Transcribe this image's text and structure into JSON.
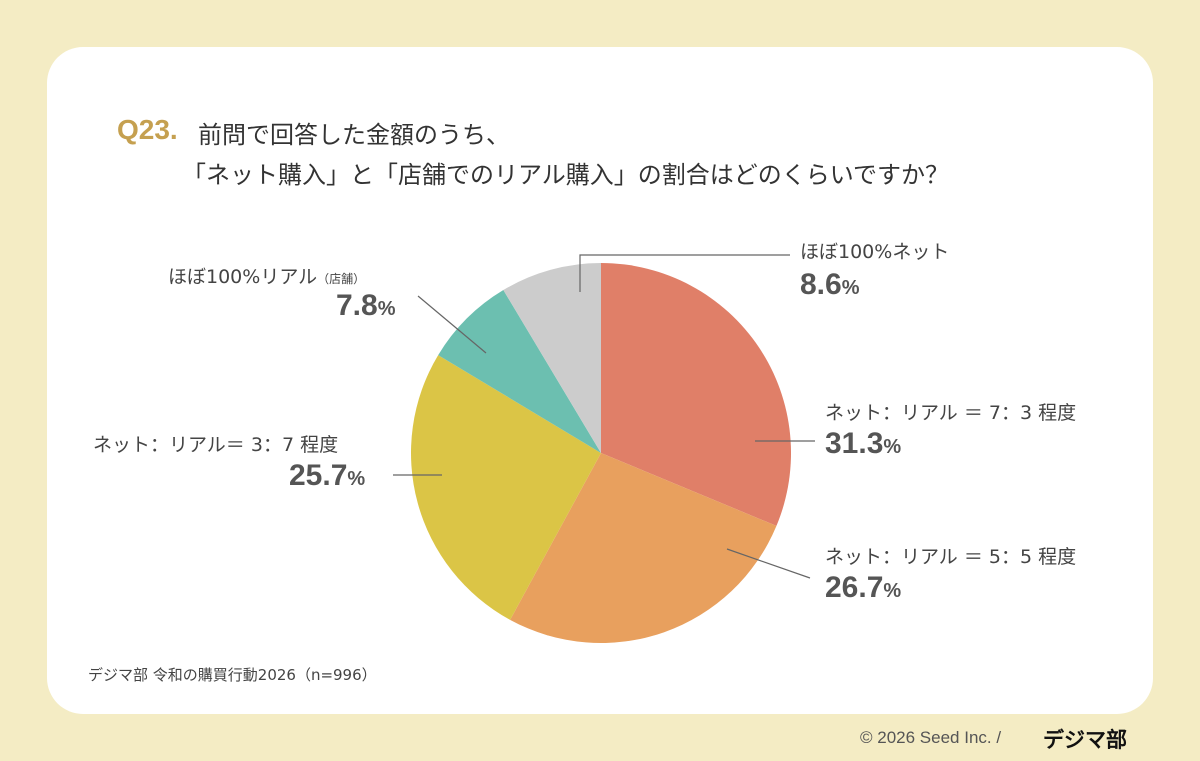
{
  "header": {
    "q_number": "Q23.",
    "title_line1": "前問で回答した金額のうち、",
    "title_line2": "「ネット購入」と「店舗でのリアル購入」の割合はどのくらいですか？"
  },
  "chart_data": {
    "type": "pie",
    "start": "top",
    "direction": "clockwise",
    "slices": [
      {
        "label": "ネット：リアル ＝ 7：3 程度",
        "value": 31.3,
        "color": "#e07f68"
      },
      {
        "label": "ネット：リアル ＝ 5：5 程度",
        "value": 26.7,
        "color": "#e8a05e"
      },
      {
        "label": "ネット：リアル＝ 3：7 程度",
        "value": 25.7,
        "color": "#dbc546"
      },
      {
        "label": "ほぼ100%リアル",
        "label_note": "（店舗）",
        "value": 7.8,
        "color": "#6cbfb0"
      },
      {
        "label": "ほぼ100%ネット",
        "value": 8.6,
        "color": "#cccccc"
      }
    ],
    "unit": "%"
  },
  "source": "デジマ部 令和の購買行動2026（n=996）",
  "footer": {
    "copyright": "© 2026 Seed Inc. /",
    "logo": "デジマ部"
  }
}
